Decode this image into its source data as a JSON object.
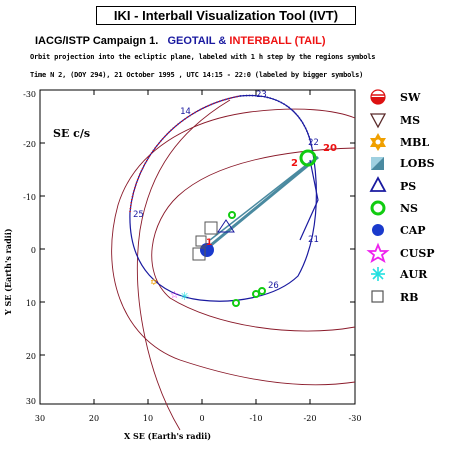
{
  "header": {
    "app_title": "IKI - Interball Visualization Tool (IVT)",
    "campaign_prefix": "IACG/ISTP Campaign 1.",
    "sc1": "GEOTAIL",
    "amp": "&",
    "sc2": "INTERBALL (TAIL)",
    "subtitle": "Orbit projection into the ecliptic plane, labeled with 1 h step by the regions symbols",
    "timeline": "Time N 2, (DOY 294), 21 October  1995 ,  UTC 14:15 - 22:0 (labeled by bigger symbols)",
    "colors": {
      "sc1": "#1a1aa0",
      "sc2": "#ee1111"
    }
  },
  "plot": {
    "coord_label": "SE c/s",
    "x_axis_label": "X SE (Earth's radii)",
    "y_axis_label": "Y SE (Earth's radii)",
    "x_ticks": [
      "30",
      "20",
      "10",
      "0",
      "-10",
      "-20",
      "-30"
    ],
    "y_ticks": [
      "-30",
      "-20",
      "-10",
      "0",
      "10",
      "20",
      "30"
    ],
    "hour_labels": {
      "geotail": [
        "14",
        "23",
        "22",
        "21",
        "26",
        "25"
      ],
      "interball": [
        "20",
        "2",
        "1"
      ]
    }
  },
  "legend": [
    {
      "code": "SW",
      "icon": "sun-half-icon",
      "color": "#dd1111"
    },
    {
      "code": "MS",
      "icon": "triangle-down-icon",
      "color": "#5a2a2a"
    },
    {
      "code": "MBL",
      "icon": "star-of-david-icon",
      "color": "#f0a000"
    },
    {
      "code": "LOBS",
      "icon": "half-square-icon",
      "color": "#4a8aa0"
    },
    {
      "code": "PS",
      "icon": "triangle-up-icon",
      "color": "#1a1aa0"
    },
    {
      "code": "NS",
      "icon": "ring-icon",
      "color": "#11cc11"
    },
    {
      "code": "CAP",
      "icon": "filled-circle-icon",
      "color": "#1a3acc"
    },
    {
      "code": "CUSP",
      "icon": "star-icon",
      "color": "#ee22ee"
    },
    {
      "code": "AUR",
      "icon": "asterisk-icon",
      "color": "#22e0e0"
    },
    {
      "code": "RB",
      "icon": "square-icon",
      "color": "#555555"
    }
  ]
}
